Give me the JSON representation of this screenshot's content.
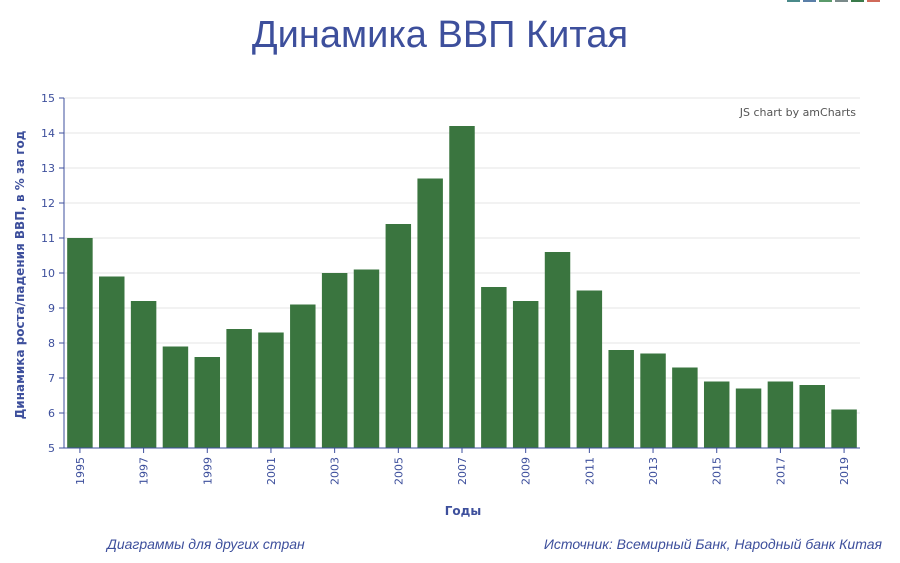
{
  "title": "Динамика ВВП Китая",
  "top_swatch_colors": [
    "#4a8a8a",
    "#5a7fa8",
    "#5a9a6a",
    "#7a8a8a",
    "#3a7a4a",
    "#d06a5a"
  ],
  "credit": "JS chart by amCharts",
  "links": {
    "other_countries": "Диаграммы для других стран"
  },
  "source": "Источник: Всемирный Банк, Народный банк Китая",
  "chart_data": {
    "type": "bar",
    "xlabel": "Годы",
    "ylabel": "Динамика роста/падения ВВП, в % за год",
    "ylim": [
      5,
      15
    ],
    "yticks": [
      5,
      6,
      7,
      8,
      9,
      10,
      11,
      12,
      13,
      14,
      15
    ],
    "categories": [
      "1995",
      "1996",
      "1997",
      "1998",
      "1999",
      "2000",
      "2001",
      "2002",
      "2003",
      "2004",
      "2005",
      "2006",
      "2007",
      "2008",
      "2009",
      "2010",
      "2011",
      "2012",
      "2013",
      "2014",
      "2015",
      "2016",
      "2017",
      "2018",
      "2019"
    ],
    "x_tick_labels": [
      "1995",
      "1997",
      "1999",
      "2001",
      "2003",
      "2005",
      "2007",
      "2009",
      "2011",
      "2013",
      "2015",
      "2017",
      "2019"
    ],
    "values": [
      11.0,
      9.9,
      9.2,
      7.9,
      7.6,
      8.4,
      8.3,
      9.1,
      10.0,
      10.1,
      11.4,
      12.7,
      14.2,
      9.6,
      9.2,
      10.6,
      9.5,
      7.8,
      7.7,
      7.3,
      6.9,
      6.7,
      6.9,
      6.8,
      6.1
    ],
    "bar_color": "#3a753f",
    "axis_color": "#3d4f9c",
    "grid": true
  }
}
